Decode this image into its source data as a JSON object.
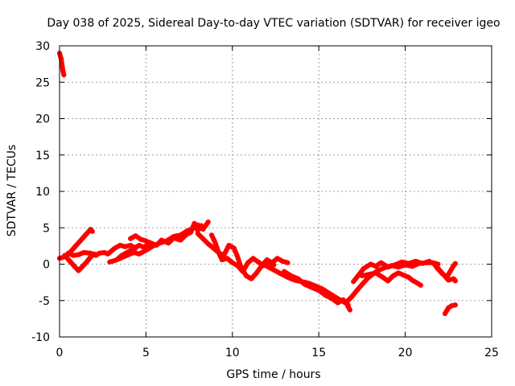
{
  "chart_data": {
    "type": "scatter",
    "title": "Day 038 of 2025, Sidereal Day-to-day VTEC variation (SDTVAR) for receiver igeo",
    "xlabel": "GPS time / hours",
    "ylabel": "SDTVAR / TECUs",
    "xlim": [
      0,
      25
    ],
    "ylim": [
      -10,
      30
    ],
    "xticks": [
      0,
      5,
      10,
      15,
      20,
      25
    ],
    "yticks": [
      -10,
      -5,
      0,
      5,
      10,
      15,
      20,
      25,
      30
    ],
    "xtick_labels": [
      "0",
      "5",
      "10",
      "15",
      "20",
      "25"
    ],
    "ytick_labels": [
      "-10",
      "-5",
      "0",
      "5",
      "10",
      "15",
      "20",
      "25",
      "30"
    ],
    "grid": true,
    "legend": "none",
    "series": [
      {
        "name": "SDTVAR",
        "color": "#ff0000",
        "segments": [
          [
            [
              0.0,
              29.0
            ],
            [
              0.1,
              28.2
            ],
            [
              0.15,
              27.3
            ],
            [
              0.2,
              26.5
            ],
            [
              0.25,
              26.0
            ]
          ],
          [
            [
              0.0,
              0.8
            ],
            [
              0.3,
              1.0
            ],
            [
              0.6,
              1.6
            ],
            [
              0.9,
              2.4
            ],
            [
              1.2,
              3.2
            ],
            [
              1.5,
              4.0
            ],
            [
              1.8,
              4.8
            ],
            [
              1.9,
              4.5
            ]
          ],
          [
            [
              0.3,
              1.2
            ],
            [
              0.6,
              0.4
            ],
            [
              0.9,
              -0.4
            ],
            [
              1.1,
              -0.9
            ],
            [
              1.3,
              -0.4
            ],
            [
              1.6,
              0.4
            ],
            [
              1.8,
              1.0
            ],
            [
              2.0,
              1.4
            ]
          ],
          [
            [
              0.5,
              1.5
            ],
            [
              0.8,
              1.2
            ],
            [
              1.1,
              1.3
            ],
            [
              1.4,
              1.6
            ],
            [
              1.8,
              1.5
            ],
            [
              2.1,
              1.2
            ],
            [
              2.3,
              1.5
            ],
            [
              2.6,
              1.6
            ],
            [
              2.8,
              1.4
            ],
            [
              3.0,
              1.8
            ],
            [
              3.2,
              2.2
            ],
            [
              3.5,
              2.6
            ],
            [
              3.8,
              2.4
            ],
            [
              4.1,
              2.6
            ],
            [
              4.4,
              2.2
            ]
          ],
          [
            [
              2.9,
              0.3
            ],
            [
              3.2,
              0.5
            ],
            [
              3.5,
              0.8
            ],
            [
              3.8,
              1.1
            ],
            [
              4.0,
              1.3
            ],
            [
              4.3,
              1.6
            ],
            [
              4.6,
              1.4
            ],
            [
              5.0,
              1.9
            ],
            [
              5.4,
              2.5
            ],
            [
              5.8,
              2.9
            ],
            [
              6.2,
              3.2
            ],
            [
              6.6,
              3.8
            ],
            [
              7.0,
              4.0
            ],
            [
              7.4,
              4.6
            ],
            [
              7.8,
              5.0
            ],
            [
              8.0,
              5.4
            ],
            [
              8.3,
              4.8
            ],
            [
              8.6,
              5.8
            ]
          ],
          [
            [
              3.3,
              0.6
            ],
            [
              3.6,
              1.2
            ],
            [
              3.9,
              1.6
            ],
            [
              4.2,
              2.0
            ],
            [
              4.6,
              2.6
            ],
            [
              4.9,
              2.3
            ],
            [
              5.2,
              3.0
            ],
            [
              5.6,
              2.6
            ],
            [
              5.9,
              3.3
            ],
            [
              6.3,
              2.9
            ],
            [
              6.6,
              3.6
            ],
            [
              7.0,
              3.3
            ],
            [
              7.3,
              4.0
            ],
            [
              7.6,
              4.4
            ],
            [
              7.8,
              5.6
            ],
            [
              8.0,
              4.6
            ],
            [
              8.2,
              5.3
            ]
          ],
          [
            [
              4.1,
              3.5
            ],
            [
              4.4,
              3.9
            ],
            [
              4.7,
              3.4
            ],
            [
              5.0,
              3.2
            ],
            [
              5.3,
              2.8
            ]
          ],
          [
            [
              8.0,
              4.2
            ],
            [
              8.3,
              3.5
            ],
            [
              8.6,
              2.8
            ],
            [
              8.9,
              2.2
            ],
            [
              9.2,
              1.6
            ],
            [
              9.5,
              1.2
            ],
            [
              9.8,
              2.6
            ],
            [
              10.1,
              2.2
            ],
            [
              10.3,
              1.0
            ],
            [
              10.5,
              -0.4
            ],
            [
              10.8,
              -1.6
            ],
            [
              11.1,
              -2.0
            ],
            [
              11.4,
              -1.2
            ],
            [
              11.7,
              -0.2
            ],
            [
              12.0,
              0.6
            ],
            [
              12.3,
              0.2
            ],
            [
              12.6,
              0.8
            ],
            [
              12.9,
              0.4
            ],
            [
              13.2,
              0.2
            ]
          ],
          [
            [
              8.8,
              4.0
            ],
            [
              9.0,
              3.0
            ],
            [
              9.2,
              1.6
            ],
            [
              9.4,
              0.6
            ],
            [
              9.7,
              0.8
            ],
            [
              10.0,
              0.2
            ],
            [
              10.3,
              -0.2
            ],
            [
              10.6,
              -1.0
            ],
            [
              10.9,
              0.2
            ],
            [
              11.2,
              0.8
            ],
            [
              11.5,
              0.3
            ],
            [
              11.8,
              -0.2
            ],
            [
              12.1,
              0.4
            ],
            [
              12.4,
              -0.1
            ]
          ],
          [
            [
              12.0,
              -0.3
            ],
            [
              12.4,
              -0.8
            ],
            [
              12.8,
              -1.3
            ],
            [
              13.2,
              -1.8
            ],
            [
              13.6,
              -2.2
            ],
            [
              14.0,
              -2.4
            ],
            [
              14.4,
              -2.6
            ],
            [
              14.8,
              -3.0
            ],
            [
              15.2,
              -3.4
            ],
            [
              15.6,
              -4.0
            ],
            [
              16.0,
              -4.6
            ],
            [
              16.3,
              -5.0
            ],
            [
              16.6,
              -5.4
            ],
            [
              16.8,
              -6.3
            ]
          ],
          [
            [
              13.0,
              -1.0
            ],
            [
              13.4,
              -1.6
            ],
            [
              13.8,
              -2.0
            ],
            [
              14.2,
              -2.8
            ],
            [
              14.6,
              -3.2
            ],
            [
              15.0,
              -3.6
            ],
            [
              15.4,
              -4.3
            ],
            [
              15.8,
              -4.8
            ],
            [
              16.1,
              -5.3
            ],
            [
              16.4,
              -4.9
            ],
            [
              16.7,
              -5.6
            ]
          ],
          [
            [
              16.6,
              -5.2
            ],
            [
              16.9,
              -4.5
            ],
            [
              17.2,
              -3.6
            ],
            [
              17.5,
              -2.8
            ],
            [
              17.8,
              -2.0
            ],
            [
              18.1,
              -1.4
            ],
            [
              18.4,
              -0.9
            ],
            [
              18.8,
              -0.5
            ],
            [
              19.2,
              -0.2
            ],
            [
              19.6,
              -0.4
            ],
            [
              20.0,
              -0.1
            ],
            [
              20.4,
              -0.3
            ],
            [
              20.8,
              0.1
            ],
            [
              21.2,
              0.2
            ],
            [
              21.6,
              0.2
            ],
            [
              21.9,
              0.0
            ]
          ],
          [
            [
              17.0,
              -2.4
            ],
            [
              17.3,
              -1.5
            ],
            [
              17.6,
              -0.6
            ],
            [
              18.0,
              0.0
            ],
            [
              18.3,
              -0.3
            ],
            [
              18.6,
              0.2
            ],
            [
              19.0,
              -0.4
            ],
            [
              19.4,
              -0.1
            ],
            [
              19.8,
              0.3
            ],
            [
              20.2,
              0.1
            ],
            [
              20.6,
              0.4
            ],
            [
              21.0,
              0.1
            ],
            [
              21.4,
              0.4
            ]
          ],
          [
            [
              17.5,
              -1.6
            ],
            [
              17.9,
              -1.4
            ],
            [
              18.3,
              -1.2
            ],
            [
              18.7,
              -1.8
            ],
            [
              19.0,
              -2.3
            ],
            [
              19.3,
              -1.6
            ],
            [
              19.6,
              -1.2
            ],
            [
              19.9,
              -1.5
            ],
            [
              20.2,
              -1.8
            ],
            [
              20.4,
              -2.2
            ],
            [
              20.7,
              -2.6
            ],
            [
              20.9,
              -2.9
            ]
          ],
          [
            [
              21.6,
              0.2
            ],
            [
              21.9,
              -0.6
            ],
            [
              22.2,
              -1.4
            ],
            [
              22.5,
              -2.2
            ],
            [
              22.8,
              -2.0
            ],
            [
              22.9,
              -2.3
            ]
          ],
          [
            [
              21.8,
              -0.4
            ],
            [
              22.1,
              -1.2
            ],
            [
              22.4,
              -1.8
            ],
            [
              22.6,
              -1.0
            ],
            [
              22.8,
              -0.2
            ],
            [
              22.9,
              0.1
            ]
          ],
          [
            [
              22.3,
              -6.8
            ],
            [
              22.5,
              -6.0
            ],
            [
              22.7,
              -5.7
            ],
            [
              22.9,
              -5.6
            ]
          ]
        ]
      }
    ]
  }
}
